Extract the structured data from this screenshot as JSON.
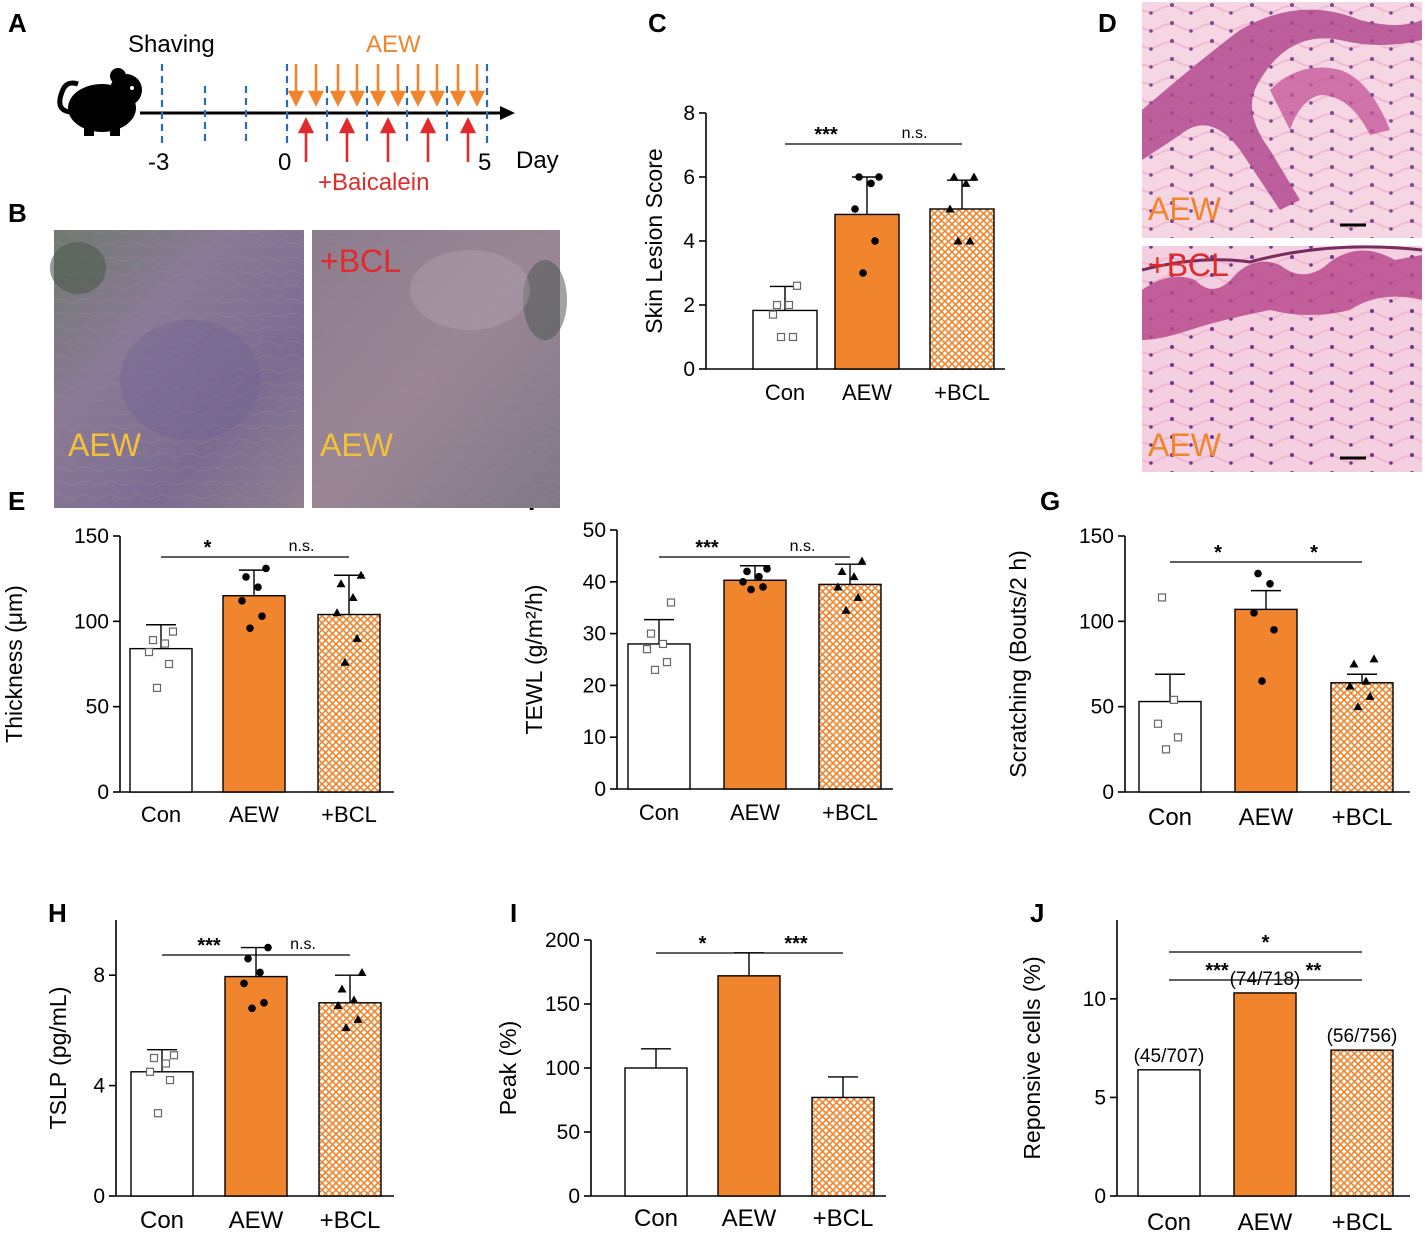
{
  "figure": {
    "panel_letters": [
      "A",
      "B",
      "C",
      "D",
      "E",
      "F",
      "G",
      "H",
      "I",
      "J"
    ]
  },
  "colors": {
    "aew": "#F0852D",
    "bcl_hatch": "#F0852D",
    "red": "#E02B2B",
    "axis": "#000000",
    "photo_label_yellow": "#F2C13A",
    "histology_label": "#F0852D"
  },
  "timeline": {
    "shaving_label": "Shaving",
    "aew_label": "AEW",
    "baicalein_label": "+Baicalein",
    "ticks": [
      "-3",
      "0",
      "5"
    ],
    "unit": "Day",
    "icon": "mouse-icon"
  },
  "photos": {
    "left_label": "AEW",
    "right_top_label": "+BCL",
    "right_label": "AEW"
  },
  "histology": {
    "top_label": "AEW",
    "bottom_top_label": "+BCL",
    "bottom_label": "AEW"
  },
  "chart_data": [
    {
      "panel": "C",
      "type": "bar",
      "categories": [
        "Con",
        "AEW",
        "+BCL"
      ],
      "values": [
        1.83,
        4.83,
        5.0
      ],
      "errors": [
        0.75,
        1.17,
        0.9
      ],
      "points": [
        [
          1,
          1,
          1.7,
          2,
          2,
          2.6
        ],
        [
          3,
          4,
          5,
          5.8,
          6,
          6
        ],
        [
          4,
          4,
          5,
          5.8,
          6,
          6
        ]
      ],
      "ylabel": "Skin Lesion Score",
      "ylim": [
        0,
        8
      ],
      "yticks": [
        0,
        2,
        4,
        6,
        8
      ],
      "significance": [
        {
          "from": 0,
          "to": 1,
          "label": "***"
        },
        {
          "from": 1,
          "to": 2,
          "label": "n.s."
        }
      ]
    },
    {
      "panel": "E",
      "type": "bar",
      "categories": [
        "Con",
        "AEW",
        "+BCL"
      ],
      "values": [
        84,
        115,
        104
      ],
      "errors": [
        14,
        15,
        23
      ],
      "points": [
        [
          61,
          75,
          82,
          87,
          89,
          94
        ],
        [
          96,
          103,
          112,
          120,
          126,
          131
        ],
        [
          76,
          90,
          105,
          114,
          122,
          127
        ]
      ],
      "ylabel": "Thickness (μm)",
      "ylim": [
        0,
        150
      ],
      "yticks": [
        0,
        50,
        100,
        150
      ],
      "significance": [
        {
          "from": 0,
          "to": 1,
          "label": "*"
        },
        {
          "from": 1,
          "to": 2,
          "label": "n.s."
        }
      ]
    },
    {
      "panel": "F",
      "type": "bar",
      "categories": [
        "Con",
        "AEW",
        "+BCL"
      ],
      "values": [
        28,
        40.3,
        39.5
      ],
      "errors": [
        4.7,
        2.8,
        3.9
      ],
      "points": [
        [
          23,
          24.5,
          27,
          28,
          30,
          36
        ],
        [
          38.5,
          39,
          40,
          41,
          42,
          42.5
        ],
        [
          34.5,
          37,
          39,
          41,
          42,
          44
        ]
      ],
      "ylabel": "TEWL (g/m²/h)",
      "ylim": [
        0,
        50
      ],
      "yticks": [
        0,
        10,
        20,
        30,
        40,
        50
      ],
      "significance": [
        {
          "from": 0,
          "to": 1,
          "label": "***"
        },
        {
          "from": 1,
          "to": 2,
          "label": "n.s."
        }
      ]
    },
    {
      "panel": "G",
      "type": "bar",
      "categories": [
        "Con",
        "AEW",
        "+BCL"
      ],
      "values": [
        53,
        107,
        64
      ],
      "errors": [
        16,
        11,
        5
      ],
      "points": [
        [
          25,
          32,
          40,
          54,
          114
        ],
        [
          65,
          95,
          105,
          122,
          128
        ],
        [
          50,
          56,
          62,
          65,
          75,
          78
        ]
      ],
      "ylabel": "Scratching (Bouts/2 h)",
      "ylim": [
        0,
        150
      ],
      "yticks": [
        0,
        50,
        100,
        150
      ],
      "significance": [
        {
          "from": 0,
          "to": 1,
          "label": "*"
        },
        {
          "from": 1,
          "to": 2,
          "label": "*"
        }
      ]
    },
    {
      "panel": "H",
      "type": "bar",
      "categories": [
        "Con",
        "AEW",
        "+BCL"
      ],
      "values": [
        4.5,
        7.95,
        7.0
      ],
      "errors": [
        0.8,
        1.05,
        1.0
      ],
      "points": [
        [
          3.0,
          4.2,
          4.5,
          4.8,
          5.0,
          5.1
        ],
        [
          6.8,
          7.0,
          7.7,
          8.1,
          8.6,
          9.0
        ],
        [
          6.1,
          6.4,
          6.9,
          7.1,
          7.5,
          8.1
        ]
      ],
      "ylabel": "TSLP (pg/mL)",
      "ylim": [
        0,
        10
      ],
      "yticks": [
        0,
        4,
        8
      ],
      "significance": [
        {
          "from": 0,
          "to": 1,
          "label": "***"
        },
        {
          "from": 1,
          "to": 2,
          "label": "n.s."
        }
      ]
    },
    {
      "panel": "I",
      "type": "bar",
      "categories": [
        "Con",
        "AEW",
        "+BCL"
      ],
      "values": [
        100,
        172,
        77
      ],
      "errors": [
        15,
        18,
        16
      ],
      "points": [],
      "ylabel": "Peak (%)",
      "ylim": [
        0,
        200
      ],
      "yticks": [
        0,
        50,
        100,
        150,
        200
      ],
      "significance": [
        {
          "from": 0,
          "to": 1,
          "label": "*"
        },
        {
          "from": 1,
          "to": 2,
          "label": "***"
        }
      ]
    },
    {
      "panel": "J",
      "type": "bar",
      "categories": [
        "Con",
        "AEW",
        "+BCL"
      ],
      "values": [
        6.4,
        10.3,
        7.4
      ],
      "errors": [
        0,
        0,
        0
      ],
      "points": [],
      "bar_labels": [
        "(45/707)",
        "(74/718)",
        "(56/756)"
      ],
      "ylabel": "Reponsive cells (%)",
      "ylim": [
        0,
        14
      ],
      "yticks": [
        0,
        5,
        10
      ],
      "significance": [
        {
          "from": 0,
          "to": 2,
          "label": "*"
        },
        {
          "from": 0,
          "to": 1,
          "label": "***"
        },
        {
          "from": 1,
          "to": 2,
          "label": "**"
        }
      ]
    }
  ]
}
